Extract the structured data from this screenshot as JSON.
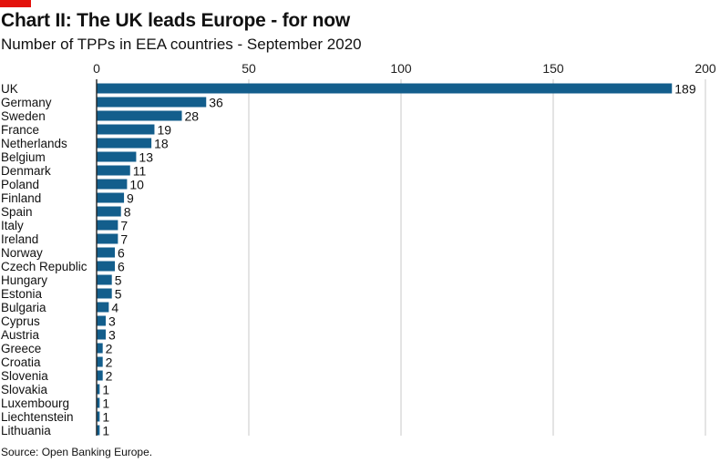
{
  "header": {
    "title": "Chart II: The UK leads Europe - for now",
    "subtitle": "Number of TPPs in EEA countries - September 2020"
  },
  "footer": {
    "source": "Source: Open Banking Europe."
  },
  "colors": {
    "bar": "#135e8c",
    "accent_red": "#e3120b",
    "gridline": "#c8c8c8",
    "axis": "#222222"
  },
  "chart_data": {
    "type": "bar",
    "orientation": "horizontal",
    "title": "Chart II: The UK leads Europe - for now",
    "subtitle": "Number of TPPs in EEA countries - September 2020",
    "xlabel": "",
    "ylabel": "",
    "xlim": [
      0,
      200
    ],
    "xticks": [
      0,
      50,
      100,
      150,
      200
    ],
    "grid": true,
    "categories": [
      "UK",
      "Germany",
      "Sweden",
      "France",
      "Netherlands",
      "Belgium",
      "Denmark",
      "Poland",
      "Finland",
      "Spain",
      "Italy",
      "Ireland",
      "Norway",
      "Czech Republic",
      "Hungary",
      "Estonia",
      "Bulgaria",
      "Cyprus",
      "Austria",
      "Greece",
      "Croatia",
      "Slovenia",
      "Slovakia",
      "Luxembourg",
      "Liechtenstein",
      "Lithuania"
    ],
    "values": [
      189,
      36,
      28,
      19,
      18,
      13,
      11,
      10,
      9,
      8,
      7,
      7,
      6,
      6,
      5,
      5,
      4,
      3,
      3,
      2,
      2,
      2,
      1,
      1,
      1,
      1
    ]
  }
}
